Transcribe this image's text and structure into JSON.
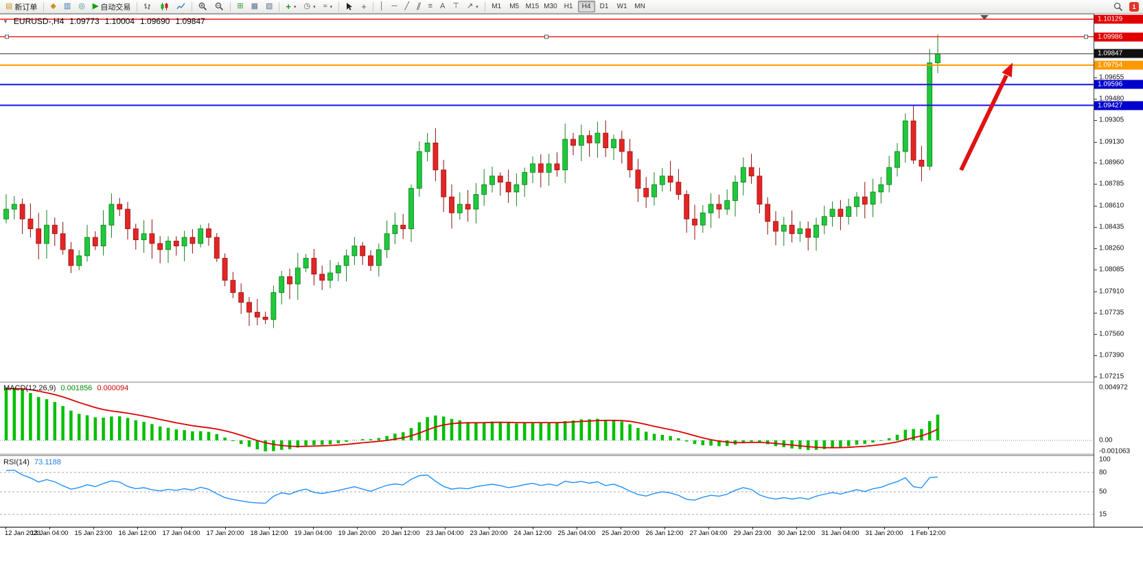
{
  "toolbar": {
    "new_order_label": "新订单",
    "auto_trading_label": "自动交易",
    "timeframes": [
      "M1",
      "M5",
      "M15",
      "M30",
      "H1",
      "H4",
      "D1",
      "W1",
      "MN"
    ],
    "active_timeframe": "H4",
    "notification_badge": "1",
    "glyphs": {
      "one_click": "▼",
      "new_order": "▤",
      "alert": "◆",
      "market_watch": "▥",
      "navigator": "◎",
      "play": "▶",
      "tile": "⊞",
      "cascade": "▦",
      "arrange": "▧",
      "plus": "+",
      "clock": "◷",
      "indicators": "≈",
      "crosshair": "+",
      "vline": "│",
      "hline": "─",
      "trendline": "╱",
      "channel": "∥",
      "fibonacci": "≡",
      "text": "A",
      "label": "⊤",
      "arrows": "↗",
      "caret": "▾"
    }
  },
  "chart": {
    "symbol_period": "EURUSD-,H4",
    "open": "1.09773",
    "high": "1.10004",
    "low": "1.09690",
    "close": "1.09847"
  },
  "price_axis": {
    "ticks": [
      "1.09655",
      "1.09480",
      "1.09305",
      "1.09130",
      "1.08960",
      "1.08785",
      "1.08610",
      "1.08435",
      "1.08260",
      "1.08085",
      "1.07910",
      "1.07735",
      "1.07560",
      "1.07390",
      "1.07215"
    ],
    "badges": [
      {
        "text": "1.10129",
        "bg": "#e00000",
        "price": 1.10129
      },
      {
        "text": "1.09986",
        "bg": "#e00000",
        "price": 1.09986
      },
      {
        "text": "1.09847",
        "bg": "#111111",
        "price": 1.09847
      },
      {
        "text": "1.09754",
        "bg": "#ff9900",
        "price": 1.09754
      },
      {
        "text": "1.09596",
        "bg": "#0000cc",
        "price": 1.09596
      },
      {
        "text": "1.09427",
        "bg": "#0000cc",
        "price": 1.09427
      }
    ]
  },
  "hlines": [
    {
      "price": 1.10129,
      "color": "#ee1111",
      "width": 1.4
    },
    {
      "price": 1.09986,
      "color": "#ee1111",
      "width": 1.4,
      "selected": true
    },
    {
      "price": 1.09847,
      "color": "#333333",
      "width": 1,
      "role": "current-price-line"
    },
    {
      "price": 1.09754,
      "color": "#ff9900",
      "width": 2
    },
    {
      "price": 1.09596,
      "color": "#1111ee",
      "width": 2
    },
    {
      "price": 1.09427,
      "color": "#1111ee",
      "width": 2
    }
  ],
  "indicators": {
    "macd": {
      "label": "MACD(12,26,9)",
      "value_main": "0.001856",
      "value_signal": "0.000094",
      "axis_max": "0.004972",
      "axis_zero": "0.00",
      "axis_min": "-0.001063",
      "params": {
        "fast": 12,
        "slow": 26,
        "signal": 9
      }
    },
    "rsi": {
      "label": "RSI(14)",
      "value": "73.1188",
      "period": 14,
      "levels": [
        "100",
        "80",
        "50",
        "15"
      ]
    }
  },
  "time_axis": [
    "12 Jan 2023",
    "13 Jan 04:00",
    "15 Jan 23:00",
    "16 Jan 12:00",
    "17 Jan 04:00",
    "17 Jan 20:00",
    "18 Jan 12:00",
    "19 Jan 04:00",
    "19 Jan 20:00",
    "20 Jan 12:00",
    "23 Jan 04:00",
    "23 Jan 20:00",
    "24 Jan 12:00",
    "25 Jan 04:00",
    "25 Jan 20:00",
    "26 Jan 12:00",
    "27 Jan 04:00",
    "29 Jan 23:00",
    "30 Jan 12:00",
    "31 Jan 04:00",
    "31 Jan 20:00",
    "1 Feb 12:00"
  ],
  "annotation": {
    "type": "arrow",
    "direction": "up-right",
    "color": "#e01212"
  },
  "chart_data": {
    "type": "candlestick",
    "symbol": "EURUSD-,H4",
    "price_scale": {
      "max": 1.10129,
      "min": 1.07215
    },
    "first_open": 1.085,
    "closes": [
      1.0858,
      1.0862,
      1.085,
      1.0842,
      1.083,
      1.0845,
      1.0838,
      1.0825,
      1.0812,
      1.082,
      1.0835,
      1.0828,
      1.0845,
      1.0862,
      1.0858,
      1.0842,
      1.0833,
      1.0838,
      1.083,
      1.0825,
      1.0832,
      1.0828,
      1.0835,
      1.083,
      1.0842,
      1.0835,
      1.0818,
      1.08,
      1.079,
      1.0782,
      1.0774,
      1.077,
      1.0768,
      1.079,
      1.0803,
      1.0797,
      1.081,
      1.0818,
      1.0805,
      1.08,
      1.0806,
      1.0812,
      1.082,
      1.0828,
      1.082,
      1.0812,
      1.0825,
      1.0838,
      1.0845,
      1.0842,
      1.0875,
      1.0905,
      1.0912,
      1.089,
      1.0868,
      1.0855,
      1.0862,
      1.0858,
      1.087,
      1.0878,
      1.0885,
      1.088,
      1.0872,
      1.0878,
      1.0888,
      1.0895,
      1.0888,
      1.0895,
      1.089,
      1.0915,
      1.091,
      1.0918,
      1.0912,
      1.092,
      1.0908,
      1.0915,
      1.0905,
      1.089,
      1.0875,
      1.0868,
      1.0878,
      1.0885,
      1.088,
      1.087,
      1.085,
      1.0845,
      1.0855,
      1.0862,
      1.0858,
      1.0865,
      1.088,
      1.0892,
      1.0885,
      1.0862,
      1.0848,
      1.084,
      1.0845,
      1.0838,
      1.0842,
      1.0835,
      1.0845,
      1.0852,
      1.0858,
      1.0852,
      1.086,
      1.0868,
      1.0862,
      1.0872,
      1.0878,
      1.0892,
      1.0905,
      1.093,
      1.0898,
      1.0893,
      1.09773,
      1.09847
    ],
    "last_candle": {
      "open": 1.09773,
      "high": 1.10004,
      "low": 1.0969,
      "close": 1.09847
    }
  }
}
